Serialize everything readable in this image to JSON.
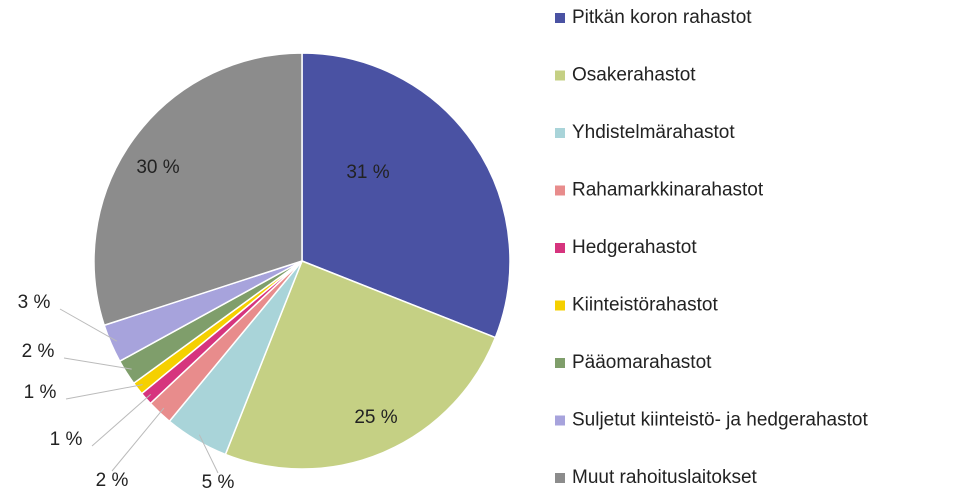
{
  "chart_data": {
    "type": "pie",
    "categories": [
      "Pitkän koron rahastot",
      "Osakerahastot",
      "Yhdistelmärahastot",
      "Rahamarkkinarahastot",
      "Hedgerahastot",
      "Kiinteistörahastot",
      "Pääomarahastot",
      "Suljetut kiinteistö- ja hedgerahastot",
      "Muut rahoituslaitokset"
    ],
    "values": [
      31,
      25,
      5,
      2,
      1,
      1,
      2,
      3,
      30
    ],
    "value_labels": [
      "31 %",
      "25 %",
      "5 %",
      "2 %",
      "1 %",
      "1 %",
      "2 %",
      "3 %",
      "30 %"
    ],
    "colors": [
      "#4a52a3",
      "#c5d084",
      "#a9d4d9",
      "#e88c8c",
      "#d6347e",
      "#f5d000",
      "#7f9e6b",
      "#a7a3dc",
      "#8c8c8c"
    ],
    "legend": "right"
  }
}
